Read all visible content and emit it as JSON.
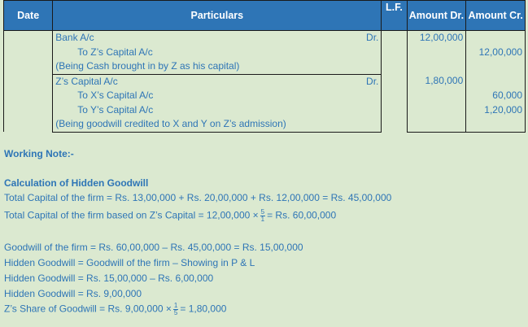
{
  "table": {
    "headers": {
      "date": "Date",
      "particulars": "Particulars",
      "lf": "L.F.",
      "dr": "Amount Dr.",
      "cr": "Amount Cr."
    },
    "entries": [
      {
        "lines": [
          {
            "text": "Bank A/c",
            "side": "Dr.",
            "dr": "12,00,000",
            "cr": ""
          },
          {
            "text": "To Z’s Capital A/c",
            "indent": true,
            "dr": "",
            "cr": "12,00,000"
          },
          {
            "text": "(Being Cash brought in by Z as his capital)",
            "dr": "",
            "cr": ""
          }
        ]
      },
      {
        "lines": [
          {
            "text": "Z’s Capital A/c",
            "side": "Dr.",
            "dr": "1,80,000",
            "cr": ""
          },
          {
            "text": "To X’s Capital A/c",
            "indent": true,
            "dr": "",
            "cr": "60,000"
          },
          {
            "text": "To Y’s Capital A/c",
            "indent": true,
            "dr": "",
            "cr": "1,20,000"
          },
          {
            "text": "(Being goodwill credited to X and Y on Z’s admission)",
            "dr": "",
            "cr": ""
          }
        ]
      }
    ]
  },
  "notes": {
    "heading": "Working Note:-",
    "subheading": "Calculation of Hidden Goodwill",
    "l1": "Total Capital of the firm = Rs. 13,00,000  + Rs. 20,00,000  + Rs. 12,00,000  = Rs. 45,00,000",
    "l2a": "Total Capital of the firm based on Z’s Capital = 12,00,000 ×",
    "l2n": "5",
    "l2d": "1",
    "l2b": "= Rs. 60,00,000",
    "l3": "Goodwill of the firm = Rs. 60,00,000  – Rs. 45,00,000  = Rs. 15,00,000",
    "l4": "Hidden Goodwill = Goodwill of the firm – Showing in P & L",
    "l5": "Hidden Goodwill = Rs. 15,00,000  – Rs. 6,00,000",
    "l6": "Hidden Goodwill = Rs. 9,00,000",
    "l7a": "Z’s Share of Goodwill = Rs. 9,00,000 ×",
    "l7n": "1",
    "l7d": "5",
    "l7b": "= 1,80,000"
  },
  "colors": {
    "header": "#2e75b6",
    "background": "#dbe9d0",
    "text": "#2e75b6"
  }
}
